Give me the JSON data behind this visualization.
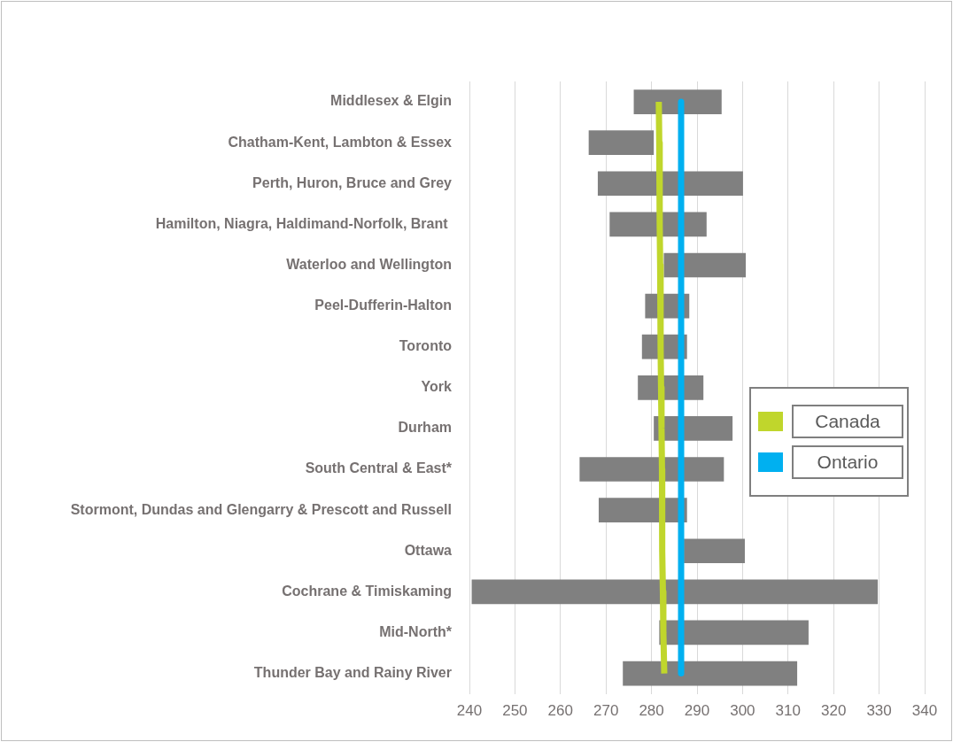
{
  "chart_data": {
    "type": "bar",
    "orientation": "horizontal",
    "categories": [
      "Middlesex & Elgin",
      "Chatham-Kent, Lambton & Essex",
      "Perth, Huron, Bruce and Grey",
      "Hamilton, Niagra, Haldimand-Norfolk, Brant ",
      "Waterloo and Wellington",
      "Peel-Dufferin-Halton",
      "Toronto",
      "York",
      "Durham",
      "South Central & East*",
      "Stormont, Dundas and Glengarry & Prescott and Russell",
      "Ottawa",
      "Cochrane & Timiskaming",
      "Mid-North*",
      "Thunder Bay and Rainy River"
    ],
    "series": [
      {
        "color": "#808080",
        "base": [
          276.1,
          266.2,
          268.2,
          270.8,
          282.7,
          278.6,
          277.9,
          277.0,
          280.5,
          264.2,
          268.4,
          287.1,
          240.5,
          281.7,
          273.7
        ],
        "values": [
          19.3,
          14.3,
          31.9,
          21.3,
          18.0,
          9.7,
          9.9,
          14.4,
          17.3,
          31.7,
          19.4,
          13.4,
          89.2,
          32.8,
          38.3
        ]
      },
      {
        "type": "line",
        "name": "Canada",
        "color": "#c0d62c",
        "values": [
          281.6,
          281.7,
          281.8,
          281.8,
          281.9,
          282.0,
          282.0,
          282.1,
          282.2,
          282.3,
          282.3,
          282.4,
          282.5,
          282.6,
          282.8
        ]
      },
      {
        "type": "line",
        "name": "Ontario",
        "color": "#00b0f0",
        "values": [
          286.5,
          286.5,
          286.5,
          286.5,
          286.5,
          286.5,
          286.5,
          286.5,
          286.5,
          286.5,
          286.5,
          286.5,
          286.5,
          286.5,
          286.5
        ]
      }
    ],
    "xlim": [
      240,
      340
    ],
    "xticks": [
      240,
      250,
      260,
      270,
      280,
      290,
      300,
      310,
      320,
      330,
      340
    ],
    "grid": "x",
    "legend": "right",
    "marker": "none"
  }
}
